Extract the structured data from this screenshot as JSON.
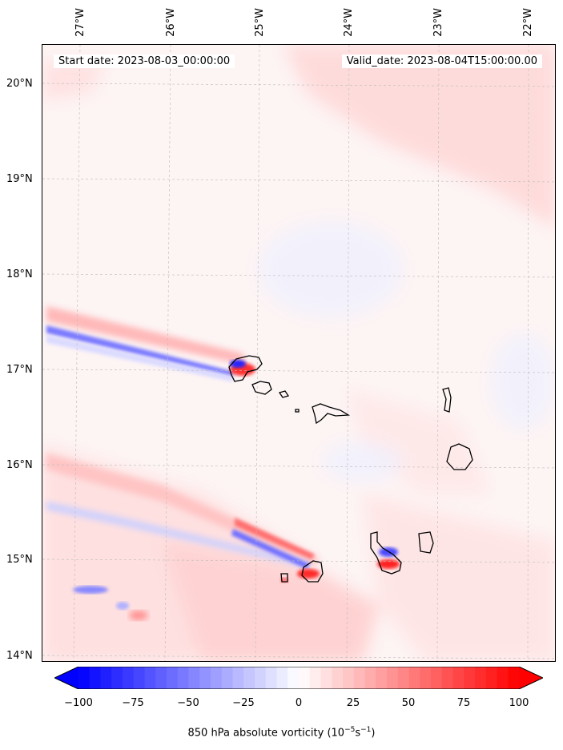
{
  "map": {
    "start_date": "Start date: 2023-08-03_00:00:00",
    "valid_date": "Valid_date: 2023-08-04T15:00:00.00",
    "lon_labels": [
      "27°W",
      "26°W",
      "25°W",
      "24°W",
      "23°W",
      "22°W"
    ],
    "lat_labels": [
      "20°N",
      "19°N",
      "18°N",
      "17°N",
      "16°N",
      "15°N",
      "14°N"
    ],
    "lon_range": [
      "-27.35",
      "-21.7"
    ],
    "lat_range": [
      "13.95",
      "20.45"
    ],
    "gridlines": true,
    "coastline_color": "#000000"
  },
  "colorbar": {
    "label": "850 hPa absolute vorticity (10",
    "label_exp1": "−5",
    "label_mid": "s",
    "label_exp2": "−1",
    "label_end": ")",
    "ticks": [
      "−100",
      "−75",
      "−50",
      "−25",
      "0",
      "25",
      "50",
      "75",
      "100"
    ],
    "range": [
      -100,
      100
    ],
    "extend": "both",
    "colormap": "bwr",
    "low_color": "#0000ff",
    "mid_color": "#ffffff",
    "high_color": "#ff0000"
  }
}
